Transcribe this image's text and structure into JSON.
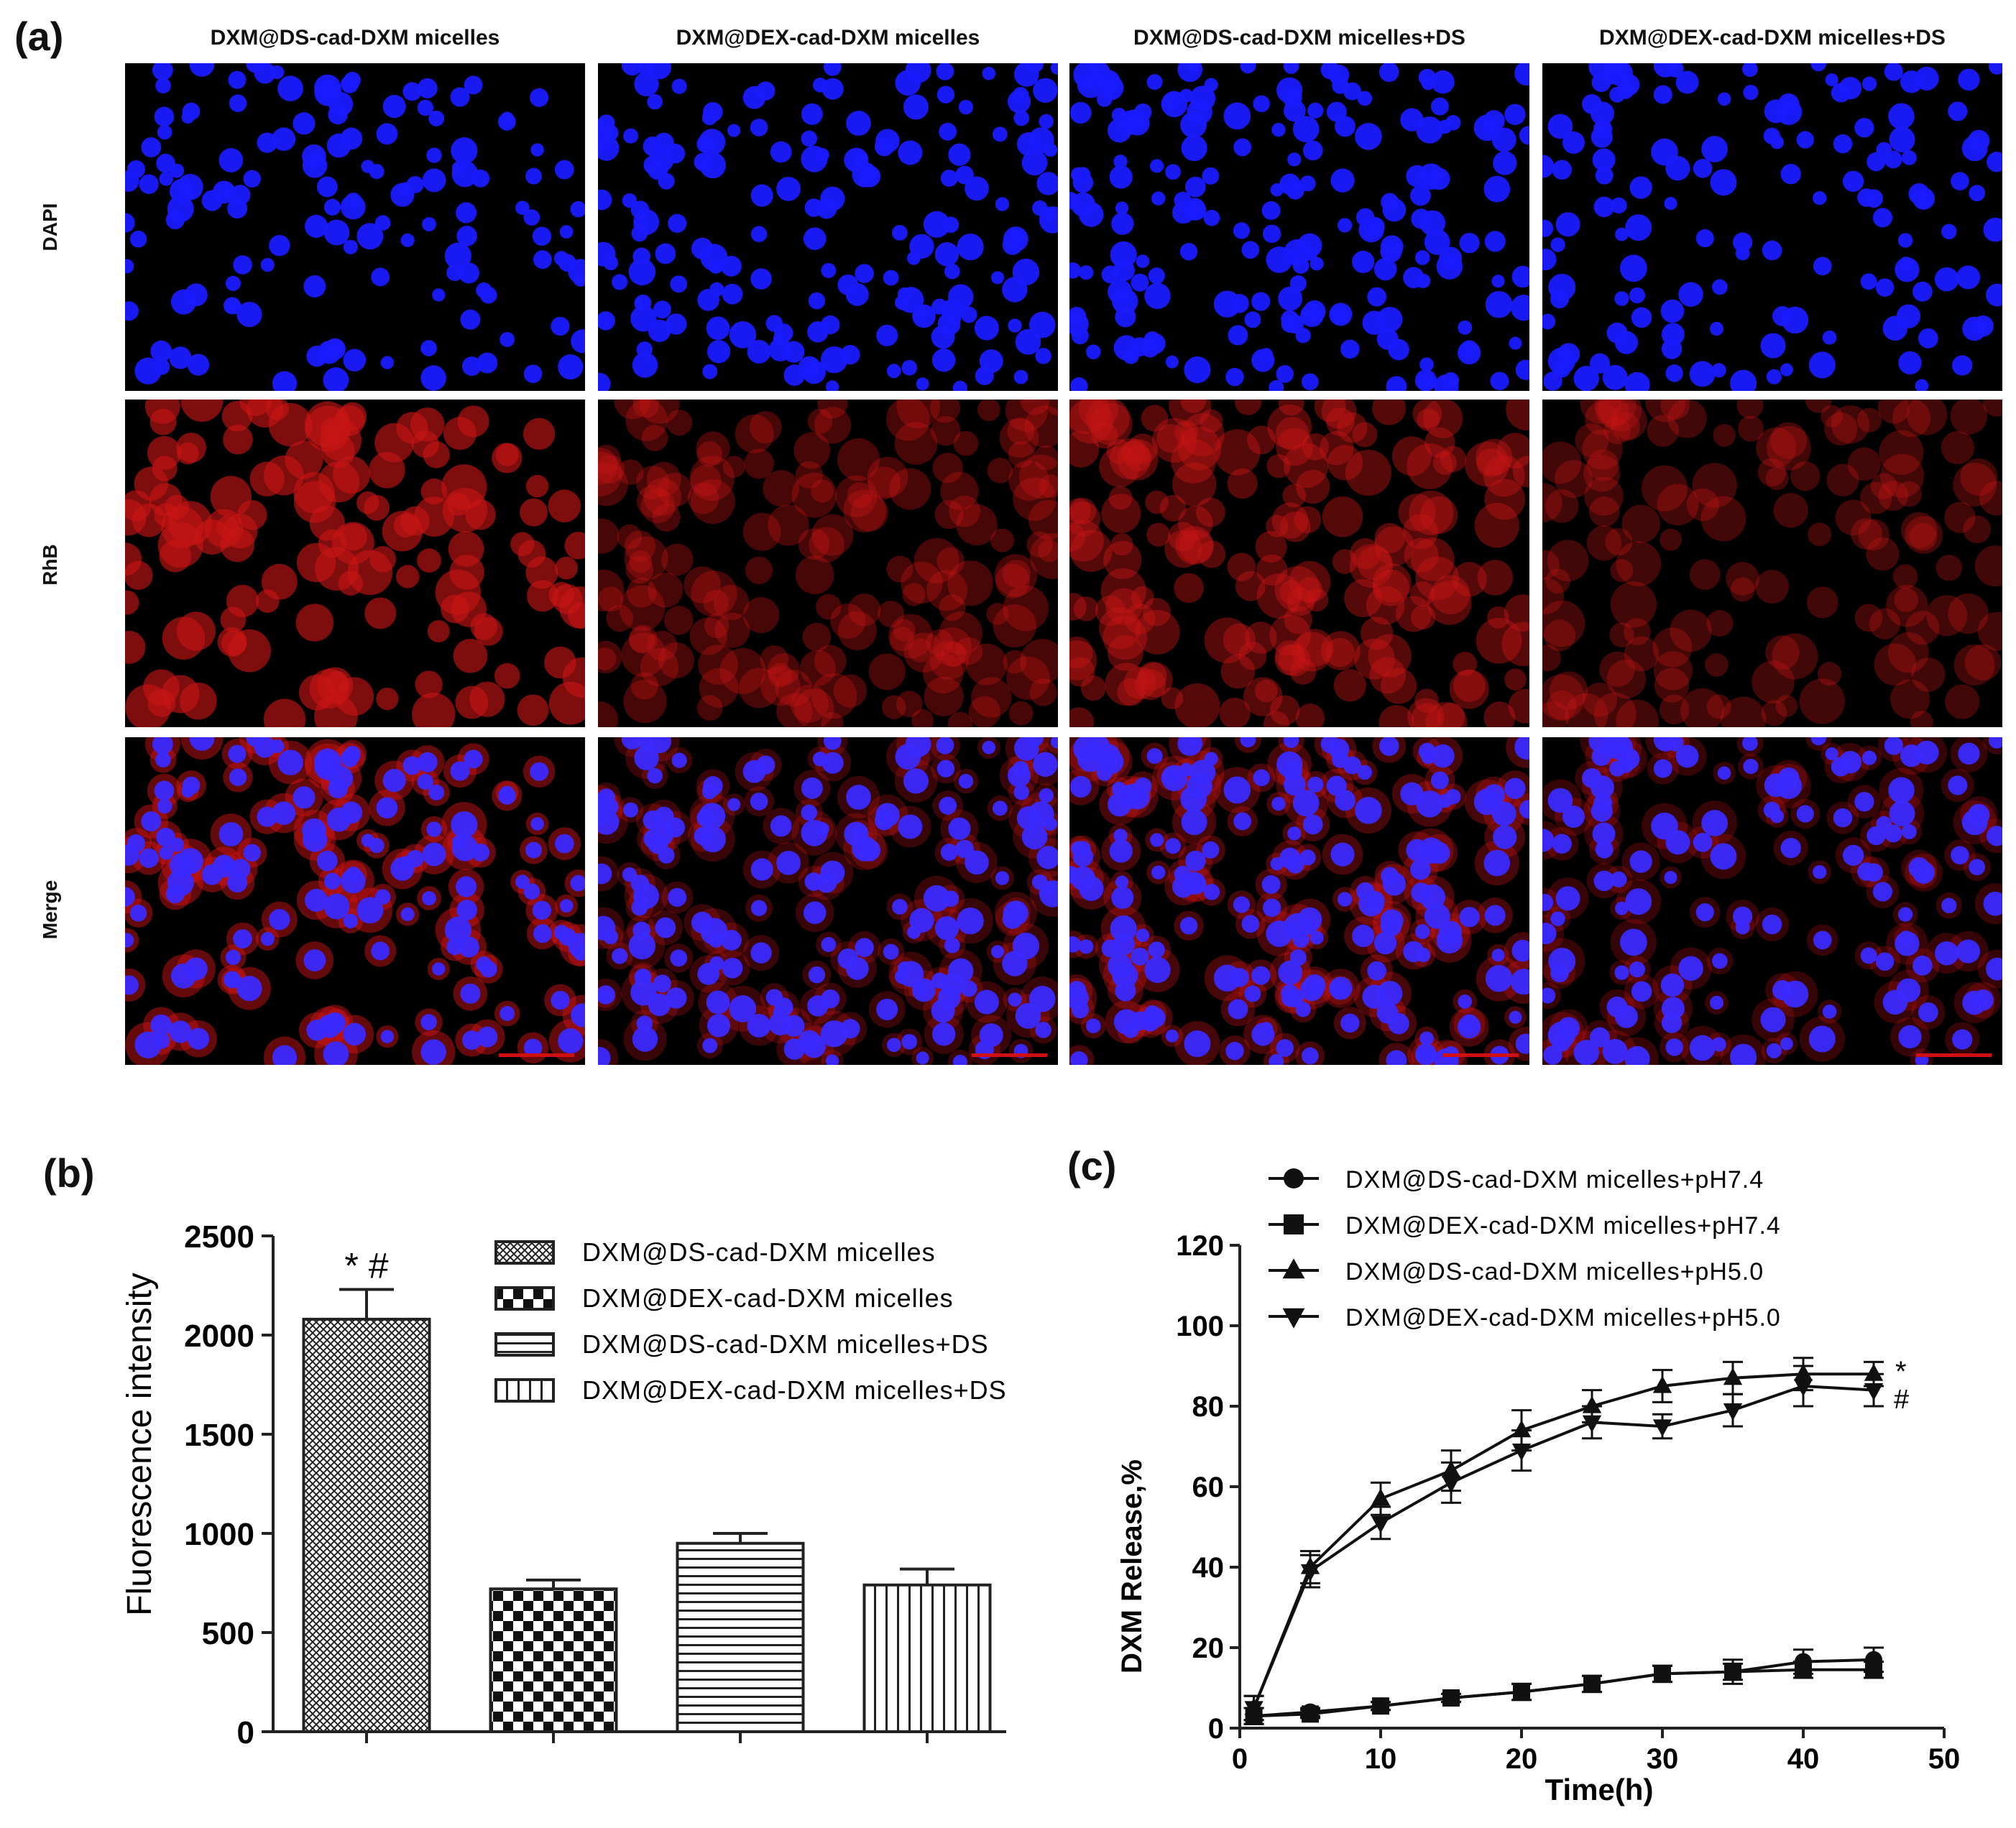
{
  "panel_a": {
    "letter": "(a)",
    "columns": [
      "DXM@DS-cad-DXM micelles",
      "DXM@DEX-cad-DXM micelles",
      "DXM@DS-cad-DXM micelles+DS",
      "DXM@DEX-cad-DXM micelles+DS"
    ],
    "rows": [
      "DAPI",
      "RhB",
      "Merge"
    ],
    "rhb_relative_intensity": [
      0.9,
      0.35,
      0.5,
      0.3
    ],
    "nuclei_density": [
      0.55,
      0.85,
      0.95,
      0.55
    ],
    "colors": {
      "dapi": "#1a1aff",
      "rhb": "#c81414",
      "background": "#000000",
      "scale_bar": "#d01010"
    }
  },
  "chart_data": [
    {
      "type": "bar",
      "panel": "(b)",
      "title": "",
      "xlabel": "",
      "ylabel": "Fluorescence intensity",
      "ylim": [
        0,
        2500
      ],
      "yticks": [
        0,
        500,
        1000,
        1500,
        2000,
        2500
      ],
      "categories": [
        "DXM@DS-cad-DXM micelles",
        "DXM@DEX-cad-DXM micelles",
        "DXM@DS-cad-DXM micelles+DS",
        "DXM@DEX-cad-DXM micelles+DS"
      ],
      "values": [
        2080,
        720,
        950,
        740
      ],
      "errors": [
        150,
        45,
        50,
        80
      ],
      "patterns": [
        "crosshatch",
        "checker",
        "horizontal",
        "vertical"
      ],
      "annotation": "* #",
      "legend": "top-right",
      "grid": false
    },
    {
      "type": "line",
      "panel": "(c)",
      "title": "",
      "xlabel": "Time(h)",
      "ylabel": "DXM Release,%",
      "xlim": [
        0,
        50
      ],
      "ylim": [
        0,
        120
      ],
      "xticks": [
        0,
        10,
        20,
        30,
        40,
        50
      ],
      "yticks": [
        0,
        20,
        40,
        60,
        80,
        100,
        120
      ],
      "x": [
        1,
        5,
        10,
        15,
        20,
        25,
        30,
        35,
        40,
        45
      ],
      "series": [
        {
          "name": "DXM@DS-cad-DXM micelles+pH7.4",
          "marker": "circle",
          "values": [
            3,
            4,
            5.5,
            7.5,
            9,
            11,
            13.5,
            14,
            16.5,
            17
          ],
          "errors": [
            2,
            1,
            1,
            1,
            2,
            2,
            2,
            3,
            3,
            3
          ]
        },
        {
          "name": "DXM@DEX-cad-DXM micelles+pH7.4",
          "marker": "square",
          "values": [
            3,
            3.5,
            5.5,
            7.5,
            9,
            11,
            13.5,
            14,
            14.5,
            14.5
          ],
          "errors": [
            2,
            1,
            1,
            1,
            2,
            2,
            2,
            2,
            2,
            2
          ]
        },
        {
          "name": "DXM@DS-cad-DXM micelles+pH5.0",
          "marker": "triangle-up",
          "values": [
            5,
            40,
            57,
            64,
            74,
            80,
            85,
            87,
            88,
            88
          ],
          "errors": [
            3,
            4,
            4,
            5,
            5,
            4,
            4,
            4,
            4,
            3
          ]
        },
        {
          "name": "DXM@DEX-cad-DXM micelles+pH5.0",
          "marker": "triangle-down",
          "values": [
            5,
            39,
            51,
            61,
            69,
            76,
            75,
            79,
            85,
            84
          ],
          "errors": [
            3,
            4,
            4,
            5,
            5,
            4,
            3,
            4,
            5,
            4
          ]
        }
      ],
      "end_annotations": [
        "*",
        "#"
      ],
      "legend": "top-left",
      "grid": false
    }
  ]
}
